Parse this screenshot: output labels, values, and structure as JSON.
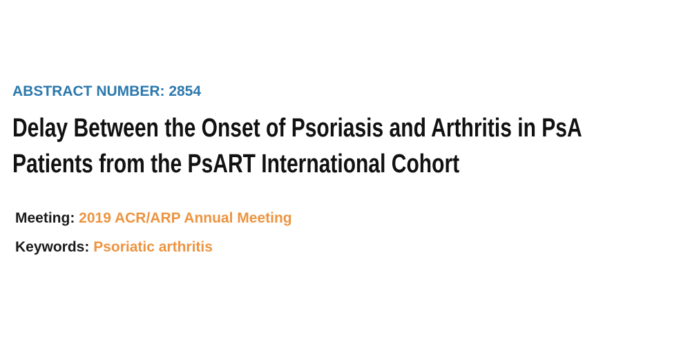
{
  "abstract_number": "ABSTRACT NUMBER: 2854",
  "title_line1": "Delay Between the Onset of Psoriasis and Arthritis in PsA",
  "title_line2": "Patients from the PsART International Cohort",
  "meeting": {
    "label": "Meeting:",
    "value": "2019 ACR/ARP Annual Meeting"
  },
  "keywords": {
    "label": "Keywords:",
    "value": "Psoriatic arthritis"
  },
  "colors": {
    "abstract_number": "#2b78ad",
    "link": "#ec9440",
    "title": "#111111"
  }
}
